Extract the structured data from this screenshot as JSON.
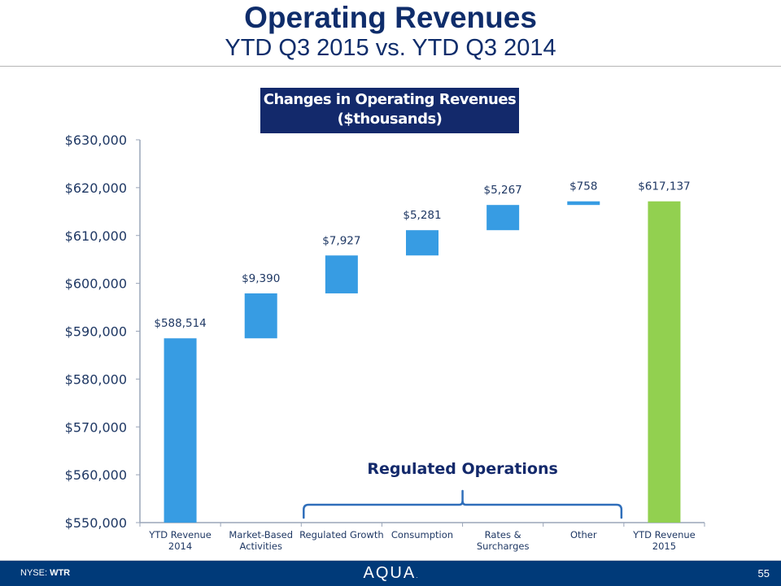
{
  "slide": {
    "title": "Operating Revenues",
    "subtitle": "YTD Q3 2015 vs. YTD Q3 2014",
    "chart_box_line1": "Changes in Operating Revenues",
    "chart_box_line2": "($thousands)",
    "bracket_label": "Regulated Operations",
    "footer": {
      "ticker_prefix": "NYSE: ",
      "ticker": "WTR",
      "logo": "AQUA",
      "logo_mark": ".",
      "page_number": "55"
    }
  },
  "colors": {
    "title": "#0f2d6b",
    "increase_bar": "#379ce3",
    "total_2015_bar": "#92d050",
    "axis": "#9aa5b8",
    "label": "#1f3864",
    "chart_box_bg": "#13296b",
    "footer_bg": "#003a79"
  },
  "chart_data": {
    "type": "bar",
    "subtype": "waterfall",
    "title": "Changes in Operating Revenues ($thousands)",
    "xlabel": "",
    "ylabel": "",
    "ylim": [
      550000,
      630000
    ],
    "ytick_step": 10000,
    "yticks": [
      "$550,000",
      "$560,000",
      "$570,000",
      "$580,000",
      "$590,000",
      "$600,000",
      "$610,000",
      "$620,000",
      "$630,000"
    ],
    "grid": false,
    "categories": [
      [
        "YTD Revenue",
        "2014"
      ],
      [
        "Market-Based",
        "Activities"
      ],
      [
        "Regulated Growth"
      ],
      [
        "Consumption"
      ],
      [
        "Rates &",
        "Surcharges"
      ],
      [
        "Other"
      ],
      [
        "YTD Revenue",
        "2015"
      ]
    ],
    "bars": [
      {
        "kind": "total",
        "start": 550000,
        "end": 588514,
        "label": "$588,514",
        "color": "increase_bar"
      },
      {
        "kind": "delta",
        "value": 9390,
        "label": "$9,390",
        "color": "increase_bar"
      },
      {
        "kind": "delta",
        "value": 7927,
        "label": "$7,927",
        "color": "increase_bar"
      },
      {
        "kind": "delta",
        "value": 5281,
        "label": "$5,281",
        "color": "increase_bar"
      },
      {
        "kind": "delta",
        "value": 5267,
        "label": "$5,267",
        "color": "increase_bar"
      },
      {
        "kind": "delta",
        "value": 758,
        "label": "$758",
        "color": "increase_bar"
      },
      {
        "kind": "total",
        "start": 550000,
        "end": 617137,
        "label": "$617,137",
        "color": "total_2015_bar"
      }
    ],
    "annotations": [
      {
        "text": "Regulated Operations",
        "type": "brace",
        "spans_categories": [
          2,
          5
        ]
      }
    ]
  }
}
